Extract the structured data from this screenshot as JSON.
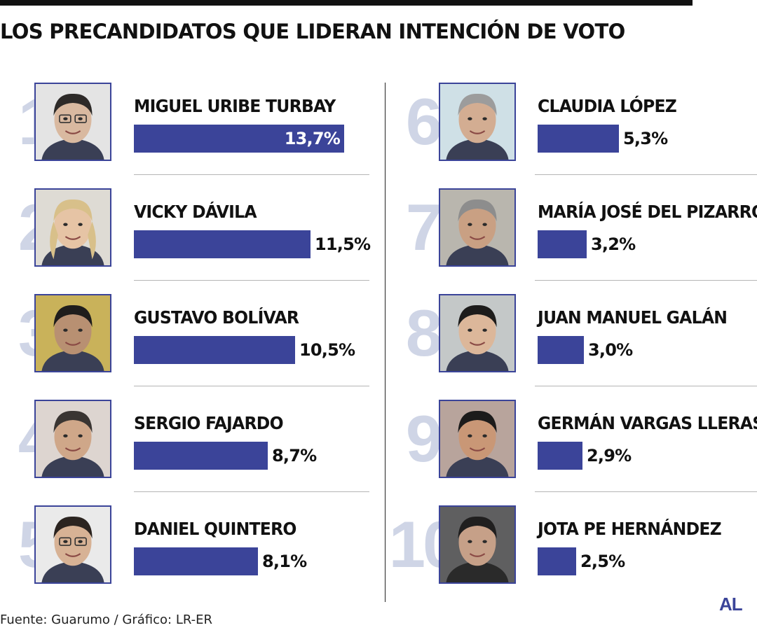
{
  "chart_data": {
    "type": "bar",
    "title": "LOS PRECANDIDATOS QUE LIDERAN INTENCIÓN DE VOTO",
    "unit": "%",
    "bars": [
      {
        "rank": "1",
        "name": "MIGUEL URIBE TURBAY",
        "value": 13.7,
        "label": "13,7%"
      },
      {
        "rank": "2",
        "name": "VICKY DÁVILA",
        "value": 11.5,
        "label": "11,5%"
      },
      {
        "rank": "3",
        "name": "GUSTAVO BOLÍVAR",
        "value": 10.5,
        "label": "10,5%"
      },
      {
        "rank": "4",
        "name": "SERGIO FAJARDO",
        "value": 8.7,
        "label": "8,7%"
      },
      {
        "rank": "5",
        "name": "DANIEL QUINTERO",
        "value": 8.1,
        "label": "8,1%"
      },
      {
        "rank": "6",
        "name": "CLAUDIA LÓPEZ",
        "value": 5.3,
        "label": "5,3%"
      },
      {
        "rank": "7",
        "name": "MARÍA JOSÉ DEL PIZARRO",
        "value": 3.2,
        "label": "3,2%"
      },
      {
        "rank": "8",
        "name": "JUAN MANUEL GALÁN",
        "value": 3.0,
        "label": "3,0%"
      },
      {
        "rank": "9",
        "name": "GERMÁN VARGAS LLERAS",
        "value": 2.9,
        "label": "2,9%"
      },
      {
        "rank": "10",
        "name": "JOTA PE HERNÁNDEZ",
        "value": 2.5,
        "label": "2,5%"
      }
    ],
    "colors": {
      "bar": "#3b4499",
      "rank_number": "#cfd5e6",
      "photo_border": "#3b4499"
    }
  },
  "footer": {
    "source": "Fuente: Guarumo / Gráfico: LR-ER",
    "logo": "AL"
  }
}
